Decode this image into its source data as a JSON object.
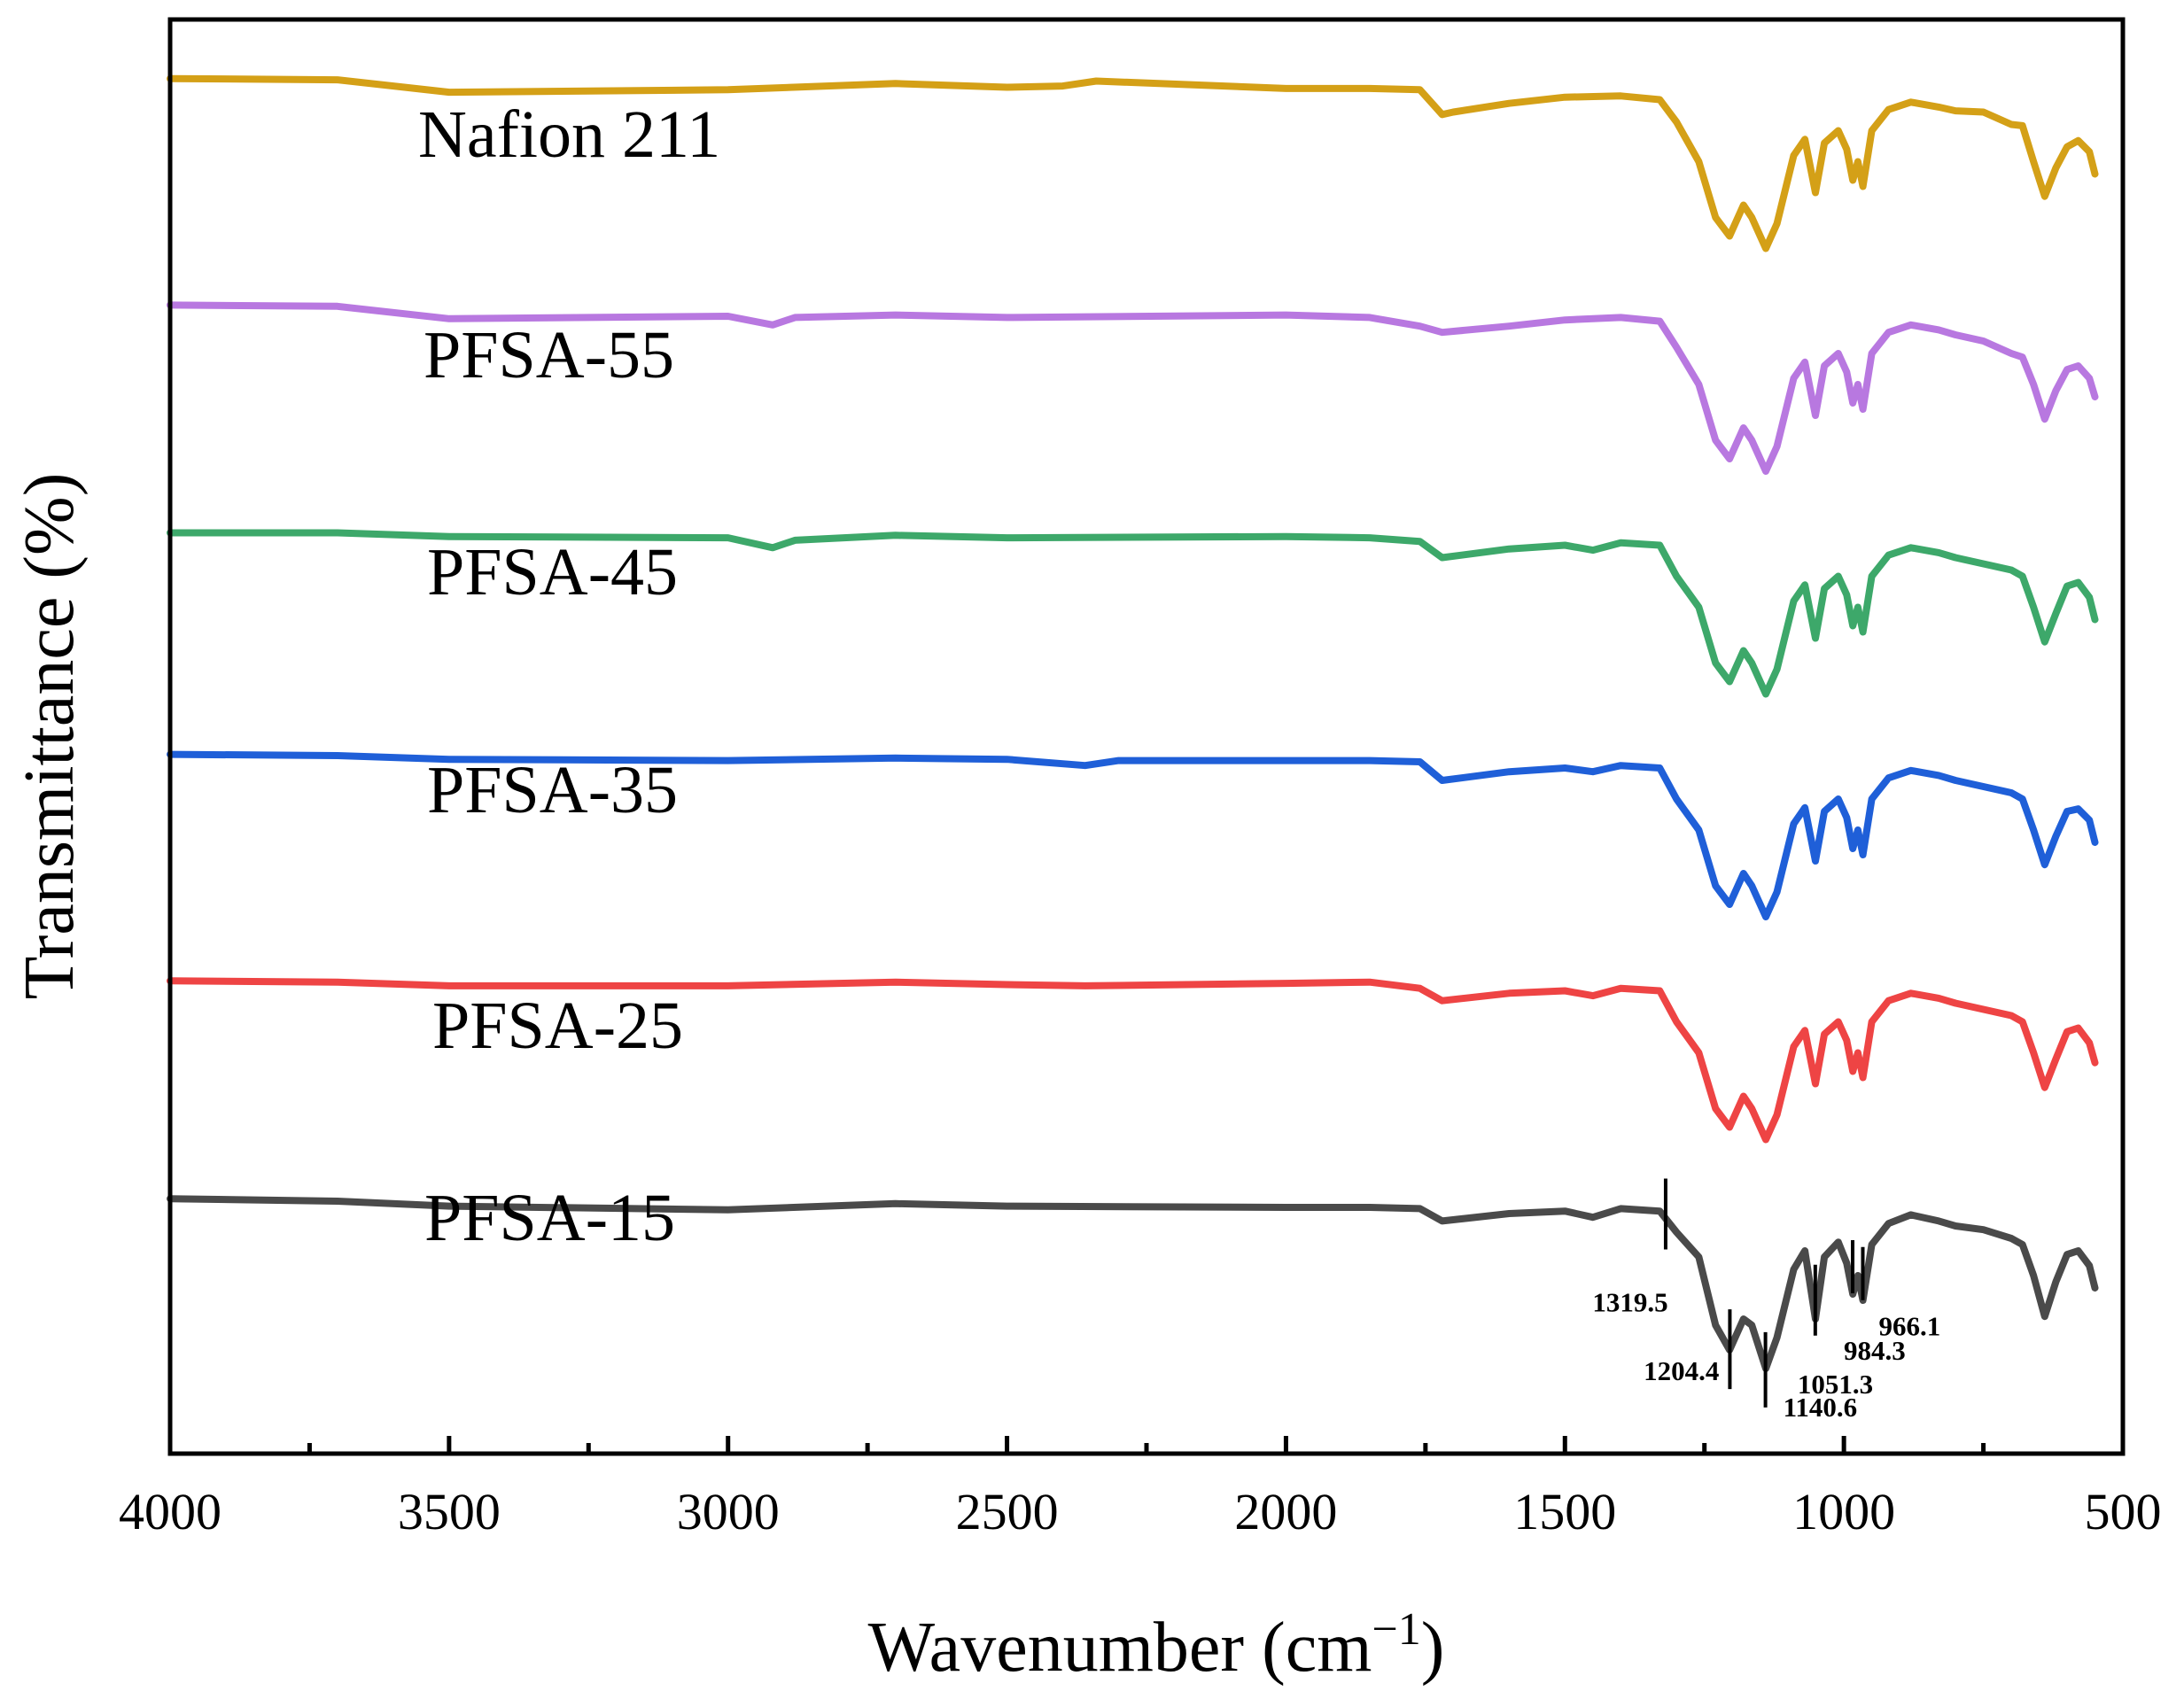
{
  "chart_data": {
    "type": "line",
    "title": "",
    "xlabel": "Wavenumber (cm",
    "xlabel_sup": "−1",
    "xlabel_close": ")",
    "ylabel": "Transmittance (%)",
    "xlim": [
      4000,
      500
    ],
    "x_ticks": [
      4000,
      3500,
      3000,
      2500,
      2000,
      1500,
      1000,
      500
    ],
    "y_ticks_shown": false,
    "series": [
      {
        "name": "Nafion 211",
        "color": "#D4A017",
        "offset": 5,
        "points": [
          [
            4000,
            1.7
          ],
          [
            3700,
            1.6
          ],
          [
            3500,
            0.6
          ],
          [
            3000,
            0.8
          ],
          [
            2700,
            1.3
          ],
          [
            2500,
            1.0
          ],
          [
            2400,
            1.1
          ],
          [
            2340,
            1.5
          ],
          [
            2000,
            0.9
          ],
          [
            1850,
            0.9
          ],
          [
            1760,
            0.8
          ],
          [
            1720,
            -1.2
          ],
          [
            1700,
            -1.0
          ],
          [
            1600,
            -0.3
          ],
          [
            1500,
            0.2
          ],
          [
            1400,
            0.3
          ],
          [
            1330,
            0.0
          ],
          [
            1300,
            -1.8
          ],
          [
            1260,
            -5.0
          ],
          [
            1230,
            -9.5
          ],
          [
            1205,
            -11.0
          ],
          [
            1180,
            -8.5
          ],
          [
            1165,
            -9.5
          ],
          [
            1140,
            -12.0
          ],
          [
            1120,
            -10.0
          ],
          [
            1090,
            -4.5
          ],
          [
            1070,
            -3.2
          ],
          [
            1051,
            -7.5
          ],
          [
            1035,
            -3.5
          ],
          [
            1010,
            -2.5
          ],
          [
            995,
            -4.0
          ],
          [
            984,
            -6.5
          ],
          [
            975,
            -5.0
          ],
          [
            966,
            -7.0
          ],
          [
            950,
            -2.5
          ],
          [
            920,
            -0.8
          ],
          [
            880,
            -0.2
          ],
          [
            830,
            -0.6
          ],
          [
            800,
            -0.9
          ],
          [
            750,
            -1.0
          ],
          [
            700,
            -2.0
          ],
          [
            680,
            -2.1
          ],
          [
            660,
            -5.0
          ],
          [
            640,
            -7.8
          ],
          [
            620,
            -5.5
          ],
          [
            600,
            -3.8
          ],
          [
            580,
            -3.3
          ],
          [
            560,
            -4.2
          ],
          [
            550,
            -6.0
          ]
        ]
      },
      {
        "name": "PFSA-55",
        "color": "#B878E0",
        "offset": 4,
        "points": [
          [
            4000,
            1.4
          ],
          [
            3700,
            1.3
          ],
          [
            3500,
            0.3
          ],
          [
            3000,
            0.5
          ],
          [
            2920,
            -0.2
          ],
          [
            2880,
            0.4
          ],
          [
            2700,
            0.6
          ],
          [
            2500,
            0.4
          ],
          [
            2000,
            0.6
          ],
          [
            1850,
            0.4
          ],
          [
            1760,
            -0.3
          ],
          [
            1720,
            -0.8
          ],
          [
            1600,
            -0.3
          ],
          [
            1500,
            0.2
          ],
          [
            1400,
            0.4
          ],
          [
            1330,
            0.1
          ],
          [
            1300,
            -2.0
          ],
          [
            1260,
            -5.0
          ],
          [
            1230,
            -9.5
          ],
          [
            1205,
            -11.0
          ],
          [
            1180,
            -8.5
          ],
          [
            1165,
            -9.5
          ],
          [
            1140,
            -12.0
          ],
          [
            1120,
            -10.0
          ],
          [
            1090,
            -4.5
          ],
          [
            1070,
            -3.2
          ],
          [
            1051,
            -7.5
          ],
          [
            1035,
            -3.5
          ],
          [
            1010,
            -2.5
          ],
          [
            995,
            -4.0
          ],
          [
            984,
            -6.5
          ],
          [
            975,
            -5.0
          ],
          [
            966,
            -7.0
          ],
          [
            950,
            -2.5
          ],
          [
            920,
            -0.8
          ],
          [
            880,
            -0.2
          ],
          [
            830,
            -0.6
          ],
          [
            800,
            -1.0
          ],
          [
            750,
            -1.5
          ],
          [
            700,
            -2.5
          ],
          [
            680,
            -2.8
          ],
          [
            660,
            -5.0
          ],
          [
            640,
            -7.8
          ],
          [
            620,
            -5.5
          ],
          [
            600,
            -3.8
          ],
          [
            580,
            -3.5
          ],
          [
            560,
            -4.5
          ],
          [
            550,
            -6.0
          ]
        ]
      },
      {
        "name": "PFSA-45",
        "color": "#3DA86A",
        "offset": 3,
        "points": [
          [
            4000,
            1.0
          ],
          [
            3700,
            1.0
          ],
          [
            3500,
            0.7
          ],
          [
            3000,
            0.6
          ],
          [
            2920,
            -0.2
          ],
          [
            2880,
            0.4
          ],
          [
            2700,
            0.8
          ],
          [
            2500,
            0.6
          ],
          [
            2000,
            0.7
          ],
          [
            1850,
            0.6
          ],
          [
            1760,
            0.3
          ],
          [
            1720,
            -1.0
          ],
          [
            1600,
            -0.3
          ],
          [
            1500,
            0.0
          ],
          [
            1450,
            -0.4
          ],
          [
            1400,
            0.2
          ],
          [
            1330,
            0.0
          ],
          [
            1300,
            -2.5
          ],
          [
            1260,
            -5.0
          ],
          [
            1230,
            -9.5
          ],
          [
            1205,
            -11.0
          ],
          [
            1180,
            -8.5
          ],
          [
            1165,
            -9.5
          ],
          [
            1140,
            -12.0
          ],
          [
            1120,
            -10.0
          ],
          [
            1090,
            -4.5
          ],
          [
            1070,
            -3.2
          ],
          [
            1051,
            -7.5
          ],
          [
            1035,
            -3.5
          ],
          [
            1010,
            -2.5
          ],
          [
            995,
            -4.0
          ],
          [
            984,
            -6.5
          ],
          [
            975,
            -5.0
          ],
          [
            966,
            -7.0
          ],
          [
            950,
            -2.5
          ],
          [
            920,
            -0.8
          ],
          [
            880,
            -0.2
          ],
          [
            830,
            -0.6
          ],
          [
            800,
            -1.0
          ],
          [
            750,
            -1.5
          ],
          [
            700,
            -2.0
          ],
          [
            680,
            -2.5
          ],
          [
            660,
            -5.0
          ],
          [
            640,
            -7.8
          ],
          [
            620,
            -5.5
          ],
          [
            600,
            -3.3
          ],
          [
            580,
            -3.0
          ],
          [
            560,
            -4.2
          ],
          [
            550,
            -6.0
          ]
        ]
      },
      {
        "name": "PFSA-35",
        "color": "#1F5FD8",
        "offset": 2,
        "points": [
          [
            4000,
            1.1
          ],
          [
            3700,
            1.0
          ],
          [
            3500,
            0.7
          ],
          [
            3000,
            0.6
          ],
          [
            2700,
            0.8
          ],
          [
            2500,
            0.7
          ],
          [
            2360,
            0.2
          ],
          [
            2300,
            0.6
          ],
          [
            2000,
            0.6
          ],
          [
            1850,
            0.6
          ],
          [
            1760,
            0.5
          ],
          [
            1720,
            -1.0
          ],
          [
            1600,
            -0.3
          ],
          [
            1500,
            0.0
          ],
          [
            1450,
            -0.3
          ],
          [
            1400,
            0.2
          ],
          [
            1330,
            0.0
          ],
          [
            1300,
            -2.5
          ],
          [
            1260,
            -5.0
          ],
          [
            1230,
            -9.5
          ],
          [
            1205,
            -11.0
          ],
          [
            1180,
            -8.5
          ],
          [
            1165,
            -9.5
          ],
          [
            1140,
            -12.0
          ],
          [
            1120,
            -10.0
          ],
          [
            1090,
            -4.5
          ],
          [
            1070,
            -3.2
          ],
          [
            1051,
            -7.5
          ],
          [
            1035,
            -3.5
          ],
          [
            1010,
            -2.5
          ],
          [
            995,
            -4.0
          ],
          [
            984,
            -6.5
          ],
          [
            975,
            -5.0
          ],
          [
            966,
            -7.0
          ],
          [
            950,
            -2.5
          ],
          [
            920,
            -0.8
          ],
          [
            880,
            -0.2
          ],
          [
            830,
            -0.6
          ],
          [
            800,
            -1.0
          ],
          [
            750,
            -1.5
          ],
          [
            700,
            -2.0
          ],
          [
            680,
            -2.5
          ],
          [
            660,
            -5.0
          ],
          [
            640,
            -7.8
          ],
          [
            620,
            -5.5
          ],
          [
            600,
            -3.5
          ],
          [
            580,
            -3.3
          ],
          [
            560,
            -4.2
          ],
          [
            550,
            -6.0
          ]
        ]
      },
      {
        "name": "PFSA-25",
        "color": "#EE4444",
        "offset": 1,
        "points": [
          [
            4000,
            0.8
          ],
          [
            3700,
            0.7
          ],
          [
            3500,
            0.4
          ],
          [
            3000,
            0.4
          ],
          [
            2700,
            0.7
          ],
          [
            2500,
            0.5
          ],
          [
            2360,
            0.4
          ],
          [
            2000,
            0.6
          ],
          [
            1850,
            0.7
          ],
          [
            1760,
            0.2
          ],
          [
            1720,
            -0.8
          ],
          [
            1600,
            -0.2
          ],
          [
            1500,
            0.0
          ],
          [
            1450,
            -0.4
          ],
          [
            1400,
            0.2
          ],
          [
            1330,
            0.0
          ],
          [
            1300,
            -2.5
          ],
          [
            1260,
            -5.0
          ],
          [
            1230,
            -9.5
          ],
          [
            1205,
            -11.0
          ],
          [
            1180,
            -8.5
          ],
          [
            1165,
            -9.5
          ],
          [
            1140,
            -12.0
          ],
          [
            1120,
            -10.0
          ],
          [
            1090,
            -4.5
          ],
          [
            1070,
            -3.2
          ],
          [
            1051,
            -7.5
          ],
          [
            1035,
            -3.5
          ],
          [
            1010,
            -2.5
          ],
          [
            995,
            -4.0
          ],
          [
            984,
            -6.5
          ],
          [
            975,
            -5.0
          ],
          [
            966,
            -7.0
          ],
          [
            950,
            -2.5
          ],
          [
            920,
            -0.8
          ],
          [
            880,
            -0.2
          ],
          [
            830,
            -0.6
          ],
          [
            800,
            -1.0
          ],
          [
            750,
            -1.5
          ],
          [
            700,
            -2.0
          ],
          [
            680,
            -2.5
          ],
          [
            660,
            -5.0
          ],
          [
            640,
            -7.8
          ],
          [
            620,
            -5.5
          ],
          [
            600,
            -3.3
          ],
          [
            580,
            -3.0
          ],
          [
            560,
            -4.2
          ],
          [
            550,
            -5.8
          ]
        ]
      },
      {
        "name": "PFSA-15",
        "color": "#4A4A4A",
        "offset": 0,
        "points": [
          [
            4000,
            1.2
          ],
          [
            3700,
            1.0
          ],
          [
            3500,
            0.6
          ],
          [
            3000,
            0.3
          ],
          [
            2700,
            0.8
          ],
          [
            2500,
            0.6
          ],
          [
            2000,
            0.5
          ],
          [
            1850,
            0.5
          ],
          [
            1760,
            0.4
          ],
          [
            1720,
            -0.6
          ],
          [
            1600,
            0.0
          ],
          [
            1500,
            0.2
          ],
          [
            1450,
            -0.3
          ],
          [
            1400,
            0.4
          ],
          [
            1330,
            0.2
          ],
          [
            1300,
            -1.5
          ],
          [
            1260,
            -3.5
          ],
          [
            1230,
            -9.0
          ],
          [
            1205,
            -11.0
          ],
          [
            1180,
            -8.5
          ],
          [
            1165,
            -9.0
          ],
          [
            1140,
            -12.5
          ],
          [
            1120,
            -10.0
          ],
          [
            1090,
            -4.5
          ],
          [
            1070,
            -3.0
          ],
          [
            1051,
            -8.5
          ],
          [
            1035,
            -3.5
          ],
          [
            1010,
            -2.3
          ],
          [
            995,
            -4.0
          ],
          [
            984,
            -6.5
          ],
          [
            975,
            -5.0
          ],
          [
            966,
            -7.0
          ],
          [
            950,
            -2.5
          ],
          [
            920,
            -0.8
          ],
          [
            880,
            -0.1
          ],
          [
            830,
            -0.6
          ],
          [
            800,
            -1.0
          ],
          [
            750,
            -1.3
          ],
          [
            700,
            -2.0
          ],
          [
            680,
            -2.5
          ],
          [
            660,
            -5.0
          ],
          [
            640,
            -8.3
          ],
          [
            620,
            -5.5
          ],
          [
            600,
            -3.3
          ],
          [
            580,
            -3.0
          ],
          [
            560,
            -4.2
          ],
          [
            550,
            -6.0
          ]
        ]
      }
    ],
    "annotations": [
      {
        "label": "1319.5",
        "x": 1319.5
      },
      {
        "label": "1204.4",
        "x": 1204.4
      },
      {
        "label": "1140.6",
        "x": 1140.6
      },
      {
        "label": "1051.3",
        "x": 1051.3
      },
      {
        "label": "984.3",
        "x": 984.3
      },
      {
        "label": "966.1",
        "x": 966.1
      }
    ]
  }
}
